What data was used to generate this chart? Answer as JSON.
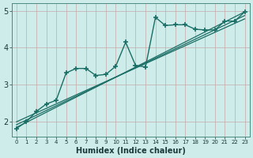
{
  "xlabel": "Humidex (Indice chaleur)",
  "bg_color": "#ceecea",
  "grid_color": "#b0d8d5",
  "line_color": "#1a6e65",
  "xlim": [
    -0.5,
    23.5
  ],
  "ylim": [
    1.6,
    5.2
  ],
  "yticks": [
    2,
    3,
    4,
    5
  ],
  "xticks": [
    0,
    1,
    2,
    3,
    4,
    5,
    6,
    7,
    8,
    9,
    10,
    11,
    12,
    13,
    14,
    15,
    16,
    17,
    18,
    19,
    20,
    21,
    22,
    23
  ],
  "main_x": [
    0,
    1,
    2,
    3,
    4,
    5,
    6,
    7,
    8,
    9,
    10,
    11,
    12,
    13,
    14,
    15,
    16,
    17,
    18,
    19,
    20,
    21,
    22,
    23
  ],
  "main_y": [
    1.82,
    2.0,
    2.28,
    2.48,
    2.58,
    3.32,
    3.44,
    3.44,
    3.25,
    3.28,
    3.5,
    4.15,
    3.52,
    3.48,
    4.82,
    4.6,
    4.62,
    4.62,
    4.5,
    4.48,
    4.48,
    4.72,
    4.72,
    4.97
  ],
  "line1_x": [
    0,
    23
  ],
  "line1_y": [
    1.85,
    4.97
  ],
  "line2_x": [
    0,
    23
  ],
  "line2_y": [
    1.92,
    4.87
  ],
  "line3_x": [
    0,
    23
  ],
  "line3_y": [
    2.0,
    4.78
  ]
}
